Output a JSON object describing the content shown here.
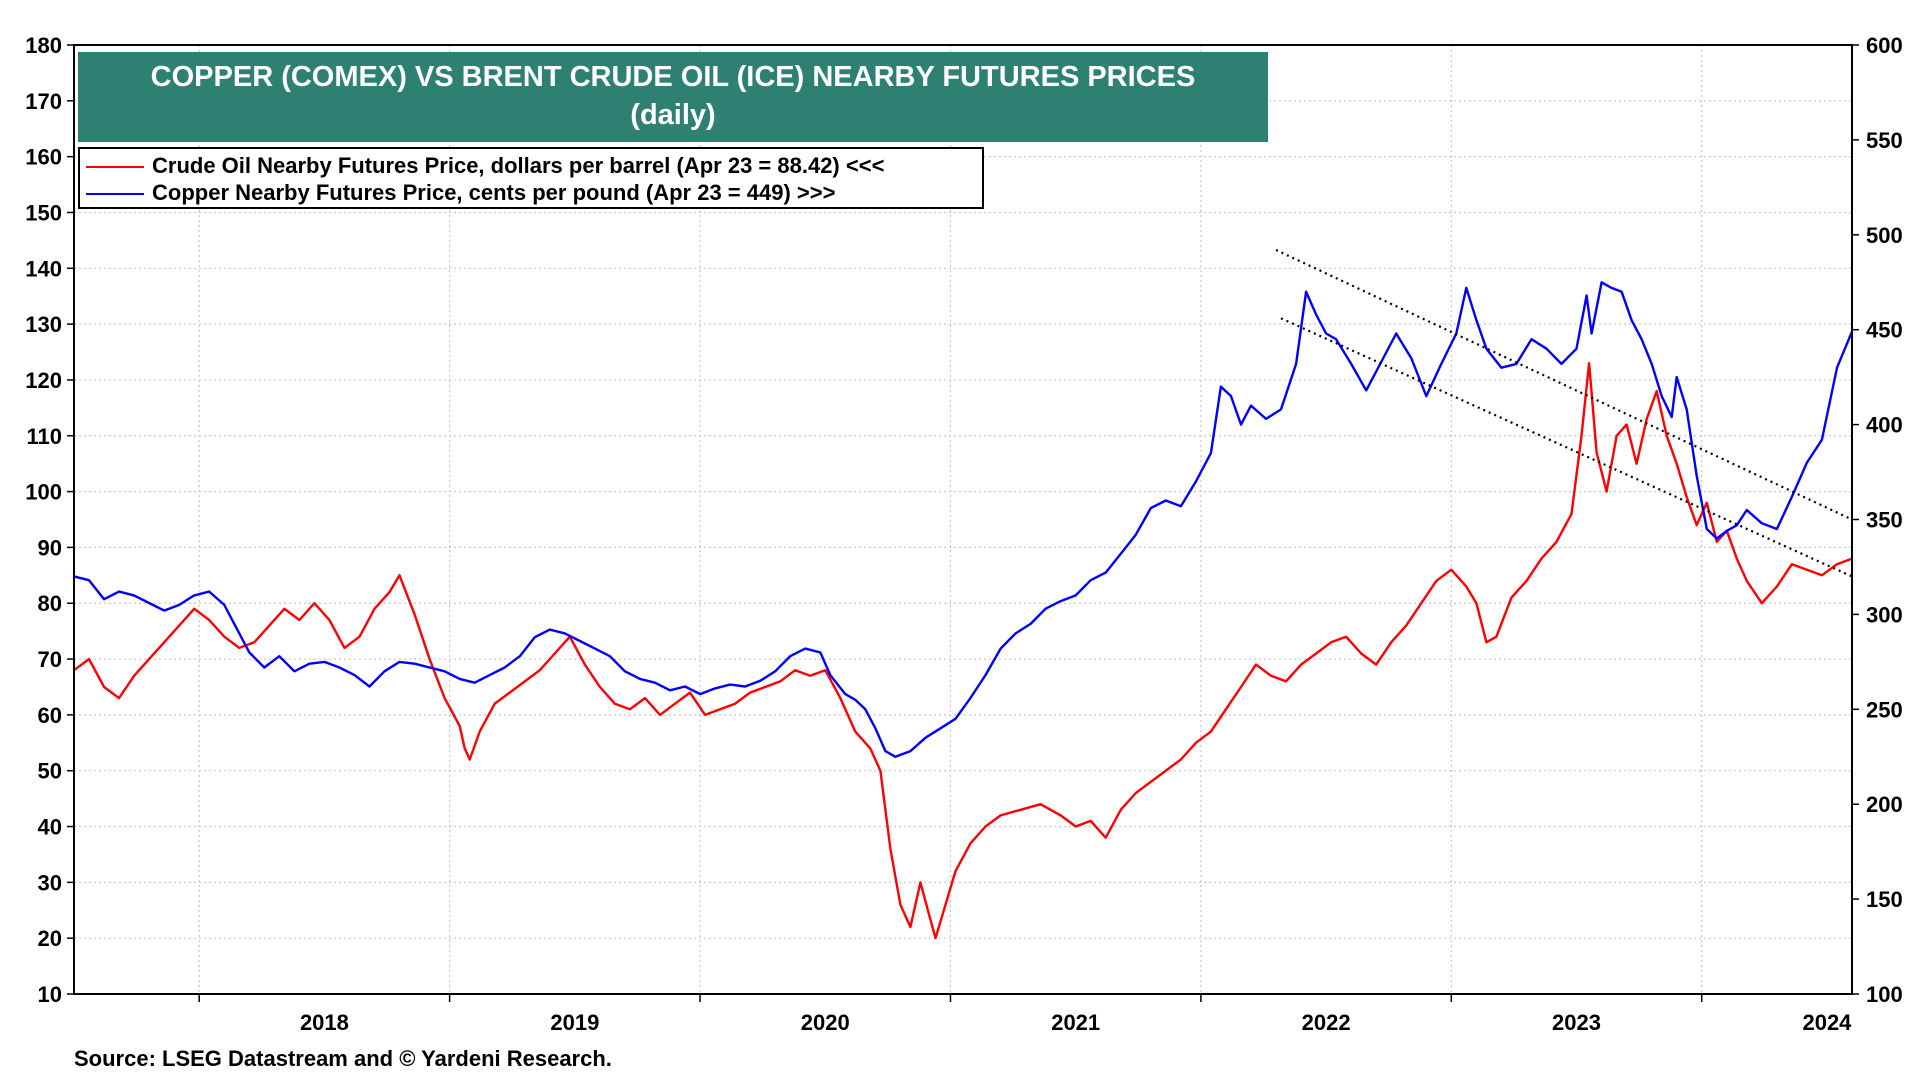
{
  "chart_data": {
    "type": "line",
    "title": "COPPER (COMEX) VS BRENT CRUDE OIL (ICE) NEARBY FUTURES PRICES",
    "subtitle": "(daily)",
    "x_axis": {
      "labels": [
        "2018",
        "2019",
        "2020",
        "2021",
        "2022",
        "2023",
        "2024"
      ],
      "range": [
        2017.5,
        2024.6
      ]
    },
    "y_left": {
      "range": [
        10,
        180
      ],
      "ticks": [
        10,
        20,
        30,
        40,
        50,
        60,
        70,
        80,
        90,
        100,
        110,
        120,
        130,
        140,
        150,
        160,
        170,
        180
      ]
    },
    "y_right": {
      "range": [
        100,
        600
      ],
      "ticks": [
        100,
        150,
        200,
        250,
        300,
        350,
        400,
        450,
        500,
        550,
        600
      ]
    },
    "grid": true,
    "legend": [
      {
        "label": "Crude Oil Nearby Futures Price, dollars per barrel (Apr 23 = 88.42) <<<",
        "color": "#ff0000"
      },
      {
        "label": "Copper Nearby Futures Price, cents per pound (Apr 23 = 449) >>>",
        "color": "#0000ff"
      }
    ],
    "series": [
      {
        "name": "Crude Oil Nearby Futures Price, dollars per barrel",
        "axis": "left",
        "color": "#ff0000",
        "points": [
          [
            2017.5,
            68
          ],
          [
            2017.56,
            70
          ],
          [
            2017.62,
            65
          ],
          [
            2017.68,
            63
          ],
          [
            2017.74,
            67
          ],
          [
            2017.8,
            70
          ],
          [
            2017.86,
            73
          ],
          [
            2017.92,
            76
          ],
          [
            2017.98,
            79
          ],
          [
            2018.04,
            77
          ],
          [
            2018.1,
            74
          ],
          [
            2018.16,
            72
          ],
          [
            2018.22,
            73
          ],
          [
            2018.28,
            76
          ],
          [
            2018.34,
            79
          ],
          [
            2018.4,
            77
          ],
          [
            2018.46,
            80
          ],
          [
            2018.52,
            77
          ],
          [
            2018.58,
            72
          ],
          [
            2018.64,
            74
          ],
          [
            2018.7,
            79
          ],
          [
            2018.76,
            82
          ],
          [
            2018.8,
            85
          ],
          [
            2018.86,
            78
          ],
          [
            2018.92,
            70
          ],
          [
            2018.98,
            63
          ],
          [
            2019.04,
            58
          ],
          [
            2019.06,
            54
          ],
          [
            2019.08,
            52
          ],
          [
            2019.12,
            57
          ],
          [
            2019.18,
            62
          ],
          [
            2019.24,
            64
          ],
          [
            2019.3,
            66
          ],
          [
            2019.36,
            68
          ],
          [
            2019.42,
            71
          ],
          [
            2019.48,
            74
          ],
          [
            2019.54,
            69
          ],
          [
            2019.6,
            65
          ],
          [
            2019.66,
            62
          ],
          [
            2019.72,
            61
          ],
          [
            2019.78,
            63
          ],
          [
            2019.84,
            60
          ],
          [
            2019.9,
            62
          ],
          [
            2019.96,
            64
          ],
          [
            2020.02,
            60
          ],
          [
            2020.08,
            61
          ],
          [
            2020.14,
            62
          ],
          [
            2020.2,
            64
          ],
          [
            2020.26,
            65
          ],
          [
            2020.32,
            66
          ],
          [
            2020.38,
            68
          ],
          [
            2020.44,
            67
          ],
          [
            2020.5,
            68
          ],
          [
            2020.56,
            63
          ],
          [
            2020.62,
            57
          ],
          [
            2020.68,
            54
          ],
          [
            2020.72,
            50
          ],
          [
            2020.76,
            36
          ],
          [
            2020.8,
            26
          ],
          [
            2020.84,
            22
          ],
          [
            2020.88,
            30
          ],
          [
            2020.91,
            25
          ],
          [
            2020.94,
            20
          ],
          [
            2020.98,
            26
          ],
          [
            2021.02,
            32
          ],
          [
            2021.08,
            37
          ],
          [
            2021.14,
            40
          ],
          [
            2021.2,
            42
          ],
          [
            2021.28,
            43
          ],
          [
            2021.36,
            44
          ],
          [
            2021.44,
            42
          ],
          [
            2021.5,
            40
          ],
          [
            2021.56,
            41
          ],
          [
            2021.62,
            38
          ],
          [
            2021.68,
            43
          ],
          [
            2021.74,
            46
          ],
          [
            2021.8,
            48
          ],
          [
            2021.86,
            50
          ],
          [
            2021.92,
            52
          ],
          [
            2021.98,
            55
          ],
          [
            2022.04,
            57
          ],
          [
            2022.1,
            61
          ],
          [
            2022.16,
            65
          ],
          [
            2022.22,
            69
          ],
          [
            2022.28,
            67
          ],
          [
            2022.34,
            66
          ],
          [
            2022.4,
            69
          ],
          [
            2022.46,
            71
          ],
          [
            2022.52,
            73
          ],
          [
            2022.58,
            74
          ],
          [
            2022.64,
            71
          ],
          [
            2022.7,
            69
          ],
          [
            2022.76,
            73
          ],
          [
            2022.82,
            76
          ],
          [
            2022.88,
            80
          ],
          [
            2022.94,
            84
          ],
          [
            2023.0,
            86
          ],
          [
            2023.06,
            83
          ],
          [
            2023.1,
            80
          ],
          [
            2023.14,
            73
          ],
          [
            2023.18,
            74
          ],
          [
            2023.24,
            81
          ],
          [
            2023.3,
            84
          ],
          [
            2023.36,
            88
          ],
          [
            2023.42,
            91
          ],
          [
            2023.48,
            96
          ],
          [
            2023.52,
            110
          ],
          [
            2023.55,
            123
          ],
          [
            2023.58,
            107
          ],
          [
            2023.62,
            100
          ],
          [
            2023.66,
            110
          ],
          [
            2023.7,
            112
          ],
          [
            2023.74,
            105
          ],
          [
            2023.78,
            113
          ],
          [
            2023.82,
            118
          ],
          [
            2023.86,
            110
          ],
          [
            2023.9,
            105
          ],
          [
            2023.94,
            99
          ],
          [
            2023.98,
            94
          ],
          [
            2024.02,
            98
          ],
          [
            2024.06,
            91
          ],
          [
            2024.1,
            93
          ],
          [
            2024.14,
            88
          ],
          [
            2024.18,
            84
          ],
          [
            2024.24,
            80
          ],
          [
            2024.3,
            83
          ],
          [
            2024.36,
            87
          ],
          [
            2024.42,
            86
          ],
          [
            2024.48,
            85
          ],
          [
            2024.54,
            87
          ],
          [
            2024.6,
            88
          ]
        ]
      },
      {
        "name": "Copper Nearby Futures Price, cents per pound",
        "axis": "right",
        "color": "#0000ff",
        "points": [
          [
            2017.5,
            320
          ],
          [
            2017.56,
            318
          ],
          [
            2017.62,
            308
          ],
          [
            2017.68,
            312
          ],
          [
            2017.74,
            310
          ],
          [
            2017.8,
            306
          ],
          [
            2017.86,
            302
          ],
          [
            2017.92,
            305
          ],
          [
            2017.98,
            310
          ],
          [
            2018.04,
            312
          ],
          [
            2018.1,
            305
          ],
          [
            2018.14,
            295
          ],
          [
            2018.2,
            280
          ],
          [
            2018.26,
            272
          ],
          [
            2018.32,
            278
          ],
          [
            2018.38,
            270
          ],
          [
            2018.44,
            274
          ],
          [
            2018.5,
            275
          ],
          [
            2018.56,
            272
          ],
          [
            2018.62,
            268
          ],
          [
            2018.68,
            262
          ],
          [
            2018.74,
            270
          ],
          [
            2018.8,
            275
          ],
          [
            2018.86,
            274
          ],
          [
            2018.92,
            272
          ],
          [
            2018.98,
            270
          ],
          [
            2019.04,
            266
          ],
          [
            2019.1,
            264
          ],
          [
            2019.16,
            268
          ],
          [
            2019.22,
            272
          ],
          [
            2019.28,
            278
          ],
          [
            2019.34,
            288
          ],
          [
            2019.4,
            292
          ],
          [
            2019.46,
            290
          ],
          [
            2019.52,
            286
          ],
          [
            2019.58,
            282
          ],
          [
            2019.64,
            278
          ],
          [
            2019.7,
            270
          ],
          [
            2019.76,
            266
          ],
          [
            2019.82,
            264
          ],
          [
            2019.88,
            260
          ],
          [
            2019.94,
            262
          ],
          [
            2020.0,
            258
          ],
          [
            2020.06,
            261
          ],
          [
            2020.12,
            263
          ],
          [
            2020.18,
            262
          ],
          [
            2020.24,
            265
          ],
          [
            2020.3,
            270
          ],
          [
            2020.36,
            278
          ],
          [
            2020.42,
            282
          ],
          [
            2020.48,
            280
          ],
          [
            2020.52,
            268
          ],
          [
            2020.58,
            258
          ],
          [
            2020.62,
            255
          ],
          [
            2020.66,
            250
          ],
          [
            2020.7,
            240
          ],
          [
            2020.74,
            228
          ],
          [
            2020.78,
            225
          ],
          [
            2020.84,
            228
          ],
          [
            2020.9,
            235
          ],
          [
            2020.96,
            240
          ],
          [
            2021.02,
            245
          ],
          [
            2021.08,
            256
          ],
          [
            2021.14,
            268
          ],
          [
            2021.2,
            282
          ],
          [
            2021.26,
            290
          ],
          [
            2021.32,
            295
          ],
          [
            2021.38,
            303
          ],
          [
            2021.44,
            307
          ],
          [
            2021.5,
            310
          ],
          [
            2021.56,
            318
          ],
          [
            2021.62,
            322
          ],
          [
            2021.68,
            332
          ],
          [
            2021.74,
            342
          ],
          [
            2021.8,
            356
          ],
          [
            2021.86,
            360
          ],
          [
            2021.92,
            357
          ],
          [
            2021.98,
            370
          ],
          [
            2022.04,
            385
          ],
          [
            2022.08,
            420
          ],
          [
            2022.12,
            415
          ],
          [
            2022.16,
            400
          ],
          [
            2022.2,
            410
          ],
          [
            2022.26,
            403
          ],
          [
            2022.32,
            408
          ],
          [
            2022.38,
            432
          ],
          [
            2022.42,
            470
          ],
          [
            2022.46,
            458
          ],
          [
            2022.5,
            448
          ],
          [
            2022.54,
            445
          ],
          [
            2022.6,
            432
          ],
          [
            2022.66,
            418
          ],
          [
            2022.72,
            433
          ],
          [
            2022.78,
            448
          ],
          [
            2022.84,
            435
          ],
          [
            2022.9,
            415
          ],
          [
            2022.96,
            432
          ],
          [
            2023.02,
            448
          ],
          [
            2023.06,
            472
          ],
          [
            2023.1,
            455
          ],
          [
            2023.14,
            440
          ],
          [
            2023.2,
            430
          ],
          [
            2023.26,
            432
          ],
          [
            2023.32,
            445
          ],
          [
            2023.38,
            440
          ],
          [
            2023.44,
            432
          ],
          [
            2023.5,
            440
          ],
          [
            2023.54,
            468
          ],
          [
            2023.56,
            448
          ],
          [
            2023.6,
            475
          ],
          [
            2023.64,
            472
          ],
          [
            2023.68,
            470
          ],
          [
            2023.72,
            455
          ],
          [
            2023.76,
            445
          ],
          [
            2023.8,
            432
          ],
          [
            2023.84,
            415
          ],
          [
            2023.88,
            404
          ],
          [
            2023.9,
            425
          ],
          [
            2023.94,
            408
          ],
          [
            2023.98,
            373
          ],
          [
            2024.02,
            345
          ],
          [
            2024.06,
            340
          ],
          [
            2024.1,
            344
          ],
          [
            2024.14,
            347
          ],
          [
            2024.18,
            355
          ],
          [
            2024.24,
            348
          ],
          [
            2024.3,
            345
          ],
          [
            2024.36,
            362
          ],
          [
            2024.42,
            380
          ],
          [
            2024.48,
            392
          ],
          [
            2024.54,
            430
          ],
          [
            2024.6,
            449
          ]
        ]
      }
    ],
    "trendlines": [
      {
        "axis": "right",
        "style": "dotted",
        "from": [
          2022.3,
          492
        ],
        "to": [
          2024.6,
          350
        ]
      },
      {
        "axis": "right",
        "style": "dotted",
        "from": [
          2022.32,
          456
        ],
        "to": [
          2024.6,
          320
        ]
      }
    ]
  },
  "footer": {
    "source": "Source: LSEG Datastream and © Yardeni Research."
  }
}
